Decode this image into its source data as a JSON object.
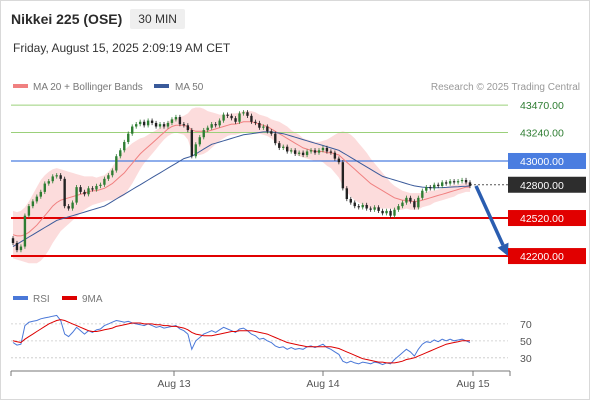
{
  "header": {
    "title": "Nikkei 225 (OSE)",
    "interval": "30 MIN",
    "datetime": "Friday, August 15, 2025 2:09:19 AM CET"
  },
  "legend": {
    "ma20_label": "MA 20 + Bollinger Bands",
    "ma50_label": "MA 50",
    "rsi_label": "RSI",
    "rsi_ma_label": "9MA",
    "credit": "Research © 2025 Trading Central"
  },
  "colors": {
    "ma20": "#f08080",
    "ma50": "#3a5a9a",
    "band_fill": "#fbd6d6",
    "candle_up": "#2e7d32",
    "candle_down": "#222222",
    "green_level": "#9bd07a",
    "blue_level": "#4a7de0",
    "red_level": "#e10000",
    "rsi": "#4a78d8",
    "rsi_ma": "#dd0000",
    "arrow": "#2a5db0"
  },
  "chart_data": [
    {
      "type": "candlestick",
      "title": "Nikkei 225 (OSE)",
      "x_ticks": [
        "Aug 13",
        "Aug 14",
        "Aug 15"
      ],
      "ylim": [
        42150,
        43530
      ],
      "levels": [
        {
          "value": 43470,
          "label": "43470.00",
          "kind": "resistance-minor"
        },
        {
          "value": 43240,
          "label": "43240.00",
          "kind": "resistance-minor"
        },
        {
          "value": 43000,
          "label": "43000.00",
          "kind": "pivot"
        },
        {
          "value": 42800,
          "label": "42800.00",
          "kind": "last-price"
        },
        {
          "value": 42520,
          "label": "42520.00",
          "kind": "support"
        },
        {
          "value": 42200,
          "label": "42200.00",
          "kind": "support-target"
        }
      ],
      "close": [
        42310,
        42250,
        42280,
        42540,
        42620,
        42660,
        42700,
        42740,
        42810,
        42830,
        42870,
        42880,
        42850,
        42620,
        42600,
        42650,
        42780,
        42740,
        42720,
        42770,
        42760,
        42790,
        42800,
        42850,
        42880,
        42920,
        43040,
        43090,
        43160,
        43230,
        43290,
        43310,
        43330,
        43300,
        43340,
        43320,
        43290,
        43310,
        43290,
        43320,
        43350,
        43370,
        43310,
        43300,
        43260,
        43040,
        43140,
        43200,
        43260,
        43280,
        43310,
        43300,
        43340,
        43390,
        43380,
        43360,
        43330,
        43400,
        43410,
        43380,
        43330,
        43320,
        43280,
        43290,
        43250,
        43230,
        43150,
        43110,
        43120,
        43080,
        43090,
        43060,
        43070,
        43050,
        43080,
        43090,
        43070,
        43090,
        43110,
        43080,
        43070,
        43020,
        42990,
        42770,
        42680,
        42650,
        42620,
        42610,
        42630,
        42600,
        42590,
        42610,
        42580,
        42560,
        42580,
        42540,
        42590,
        42620,
        42650,
        42690,
        42660,
        42610,
        42690,
        42750,
        42780,
        42770,
        42800,
        42790,
        42820,
        42810,
        42830,
        42820,
        42830,
        42840,
        42820,
        42790
      ],
      "ma20": [
        42380,
        42370,
        42370,
        42380,
        42400,
        42430,
        42460,
        42500,
        42540,
        42580,
        42620,
        42650,
        42670,
        42680,
        42690,
        42700,
        42710,
        42720,
        42730,
        42740,
        42750,
        42750,
        42760,
        42770,
        42790,
        42810,
        42840,
        42870,
        42900,
        42940,
        42980,
        43020,
        43060,
        43090,
        43120,
        43150,
        43180,
        43210,
        43240,
        43270,
        43290,
        43300,
        43300,
        43300,
        43290,
        43260,
        43250,
        43250,
        43250,
        43250,
        43260,
        43270,
        43280,
        43290,
        43300,
        43310,
        43310,
        43320,
        43330,
        43330,
        43330,
        43320,
        43310,
        43300,
        43290,
        43270,
        43250,
        43230,
        43210,
        43190,
        43170,
        43150,
        43130,
        43110,
        43100,
        43090,
        43080,
        43080,
        43080,
        43070,
        43070,
        43060,
        43050,
        43020,
        42990,
        42960,
        42930,
        42900,
        42870,
        42840,
        42810,
        42790,
        42770,
        42750,
        42730,
        42710,
        42690,
        42680,
        42670,
        42670,
        42660,
        42660,
        42660,
        42670,
        42680,
        42690,
        42700,
        42710,
        42720,
        42730,
        42740,
        42750,
        42760,
        42770,
        42780,
        42780
      ],
      "ma50": [
        42280,
        42300,
        42320,
        42340,
        42360,
        42380,
        42400,
        42420,
        42440,
        42460,
        42480,
        42500,
        42510,
        42520,
        42530,
        42540,
        42550,
        42560,
        42570,
        42580,
        42590,
        42600,
        42610,
        42620,
        42640,
        42660,
        42680,
        42700,
        42720,
        42740,
        42760,
        42780,
        42800,
        42820,
        42840,
        42860,
        42880,
        42900,
        42920,
        42940,
        42960,
        42980,
        43000,
        43020,
        43030,
        43040,
        43060,
        43080,
        43100,
        43120,
        43140,
        43150,
        43160,
        43170,
        43180,
        43190,
        43200,
        43210,
        43220,
        43225,
        43230,
        43235,
        43240,
        43245,
        43245,
        43245,
        43240,
        43235,
        43230,
        43220,
        43210,
        43200,
        43190,
        43180,
        43170,
        43160,
        43150,
        43140,
        43130,
        43120,
        43110,
        43100,
        43090,
        43070,
        43050,
        43030,
        43010,
        42990,
        42970,
        42950,
        42930,
        42910,
        42890,
        42870,
        42860,
        42850,
        42840,
        42830,
        42820,
        42810,
        42800,
        42790,
        42785,
        42780,
        42778,
        42776,
        42775,
        42775,
        42776,
        42778,
        42780,
        42782,
        42784,
        42786,
        42788,
        42790
      ],
      "band_width": [
        200,
        200,
        210,
        230,
        260,
        290,
        320,
        340,
        340,
        330,
        310,
        290,
        260,
        240,
        220,
        200,
        180,
        160,
        140,
        130,
        120,
        110,
        110,
        110,
        120,
        140,
        160,
        180,
        190,
        180,
        170,
        150,
        130,
        110,
        100,
        90,
        80,
        70,
        60,
        60,
        60,
        60,
        70,
        80,
        110,
        180,
        200,
        200,
        190,
        170,
        150,
        130,
        110,
        100,
        90,
        90,
        90,
        90,
        90,
        90,
        90,
        90,
        80,
        80,
        80,
        80,
        90,
        100,
        100,
        100,
        90,
        90,
        90,
        80,
        80,
        80,
        80,
        80,
        90,
        110,
        130,
        160,
        190,
        230,
        250,
        260,
        260,
        250,
        240,
        230,
        210,
        190,
        170,
        150,
        130,
        110,
        100,
        90,
        80,
        70,
        70,
        70,
        70,
        60,
        60,
        60,
        50,
        50,
        50,
        50,
        50,
        50,
        40,
        40,
        40,
        40
      ],
      "forecast": [
        42790,
        42200
      ]
    },
    {
      "type": "line",
      "title": "RSI",
      "ylim": [
        18,
        84
      ],
      "y_ticks": [
        70,
        50,
        30
      ],
      "series": [
        {
          "name": "RSI",
          "values": [
            48,
            45,
            46,
            68,
            72,
            73,
            74,
            76,
            77,
            78,
            79,
            80,
            74,
            58,
            55,
            60,
            66,
            62,
            58,
            62,
            60,
            63,
            64,
            68,
            70,
            72,
            74,
            73,
            72,
            73,
            71,
            70,
            69,
            68,
            70,
            68,
            66,
            67,
            65,
            66,
            67,
            68,
            64,
            62,
            58,
            40,
            50,
            54,
            58,
            60,
            62,
            60,
            63,
            66,
            64,
            62,
            60,
            64,
            65,
            62,
            58,
            56,
            52,
            53,
            50,
            48,
            44,
            42,
            43,
            40,
            42,
            40,
            41,
            40,
            43,
            44,
            42,
            44,
            46,
            42,
            40,
            37,
            34,
            26,
            24,
            26,
            24,
            23,
            25,
            24,
            23,
            25,
            24,
            22,
            24,
            23,
            28,
            32,
            36,
            40,
            37,
            32,
            40,
            46,
            49,
            48,
            51,
            49,
            52,
            50,
            52,
            50,
            51,
            52,
            50,
            48
          ]
        },
        {
          "name": "9MA",
          "values": [
            50,
            49,
            48,
            52,
            55,
            58,
            61,
            64,
            67,
            70,
            72,
            74,
            75,
            74,
            72,
            70,
            68,
            66,
            64,
            62,
            61,
            61,
            62,
            63,
            64,
            65,
            67,
            68,
            69,
            70,
            71,
            71,
            71,
            70,
            70,
            70,
            69,
            69,
            68,
            68,
            67,
            67,
            66,
            65,
            63,
            60,
            58,
            57,
            56,
            56,
            56,
            57,
            58,
            59,
            60,
            61,
            61,
            62,
            62,
            62,
            62,
            61,
            60,
            59,
            58,
            56,
            54,
            52,
            50,
            48,
            47,
            46,
            45,
            44,
            43,
            43,
            43,
            43,
            43,
            43,
            43,
            42,
            41,
            39,
            37,
            35,
            33,
            31,
            29,
            28,
            27,
            26,
            25,
            25,
            24,
            24,
            24,
            25,
            26,
            28,
            29,
            30,
            32,
            34,
            36,
            38,
            40,
            42,
            44,
            46,
            47,
            48,
            49,
            50,
            50,
            50
          ]
        }
      ]
    }
  ]
}
